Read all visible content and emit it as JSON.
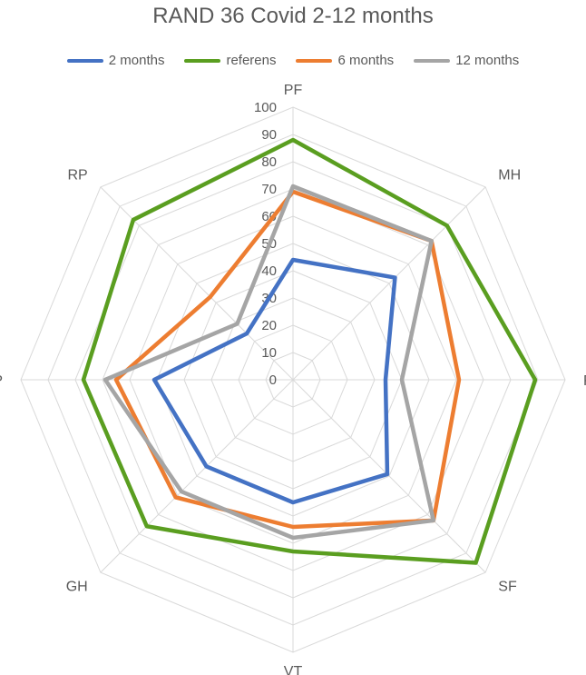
{
  "chart_data": {
    "type": "radar",
    "title": "RAND 36 Covid 2-12 months",
    "axes": [
      "PF",
      "MH",
      "RE",
      "SF",
      "VT",
      "GH",
      "BP",
      "RP"
    ],
    "ticks": [
      "0",
      "10",
      "20",
      "30",
      "40",
      "50",
      "60",
      "70",
      "80",
      "90",
      "100"
    ],
    "rlim": [
      0,
      100
    ],
    "grid": true,
    "legend_position": "top",
    "series": [
      {
        "name": "2 months",
        "color": "#4472C4",
        "values": [
          44,
          53,
          34,
          49,
          45,
          45,
          51,
          24
        ]
      },
      {
        "name": "referens",
        "color": "#5A9E20",
        "values": [
          88,
          80,
          89,
          95,
          63,
          76,
          77,
          83
        ]
      },
      {
        "name": "6 months",
        "color": "#ED7D31",
        "values": [
          69,
          72,
          61,
          73,
          54,
          61,
          65,
          43
        ]
      },
      {
        "name": "12 months",
        "color": "#A5A5A5",
        "values": [
          71,
          72,
          40,
          73,
          58,
          58,
          69,
          29
        ]
      }
    ]
  }
}
